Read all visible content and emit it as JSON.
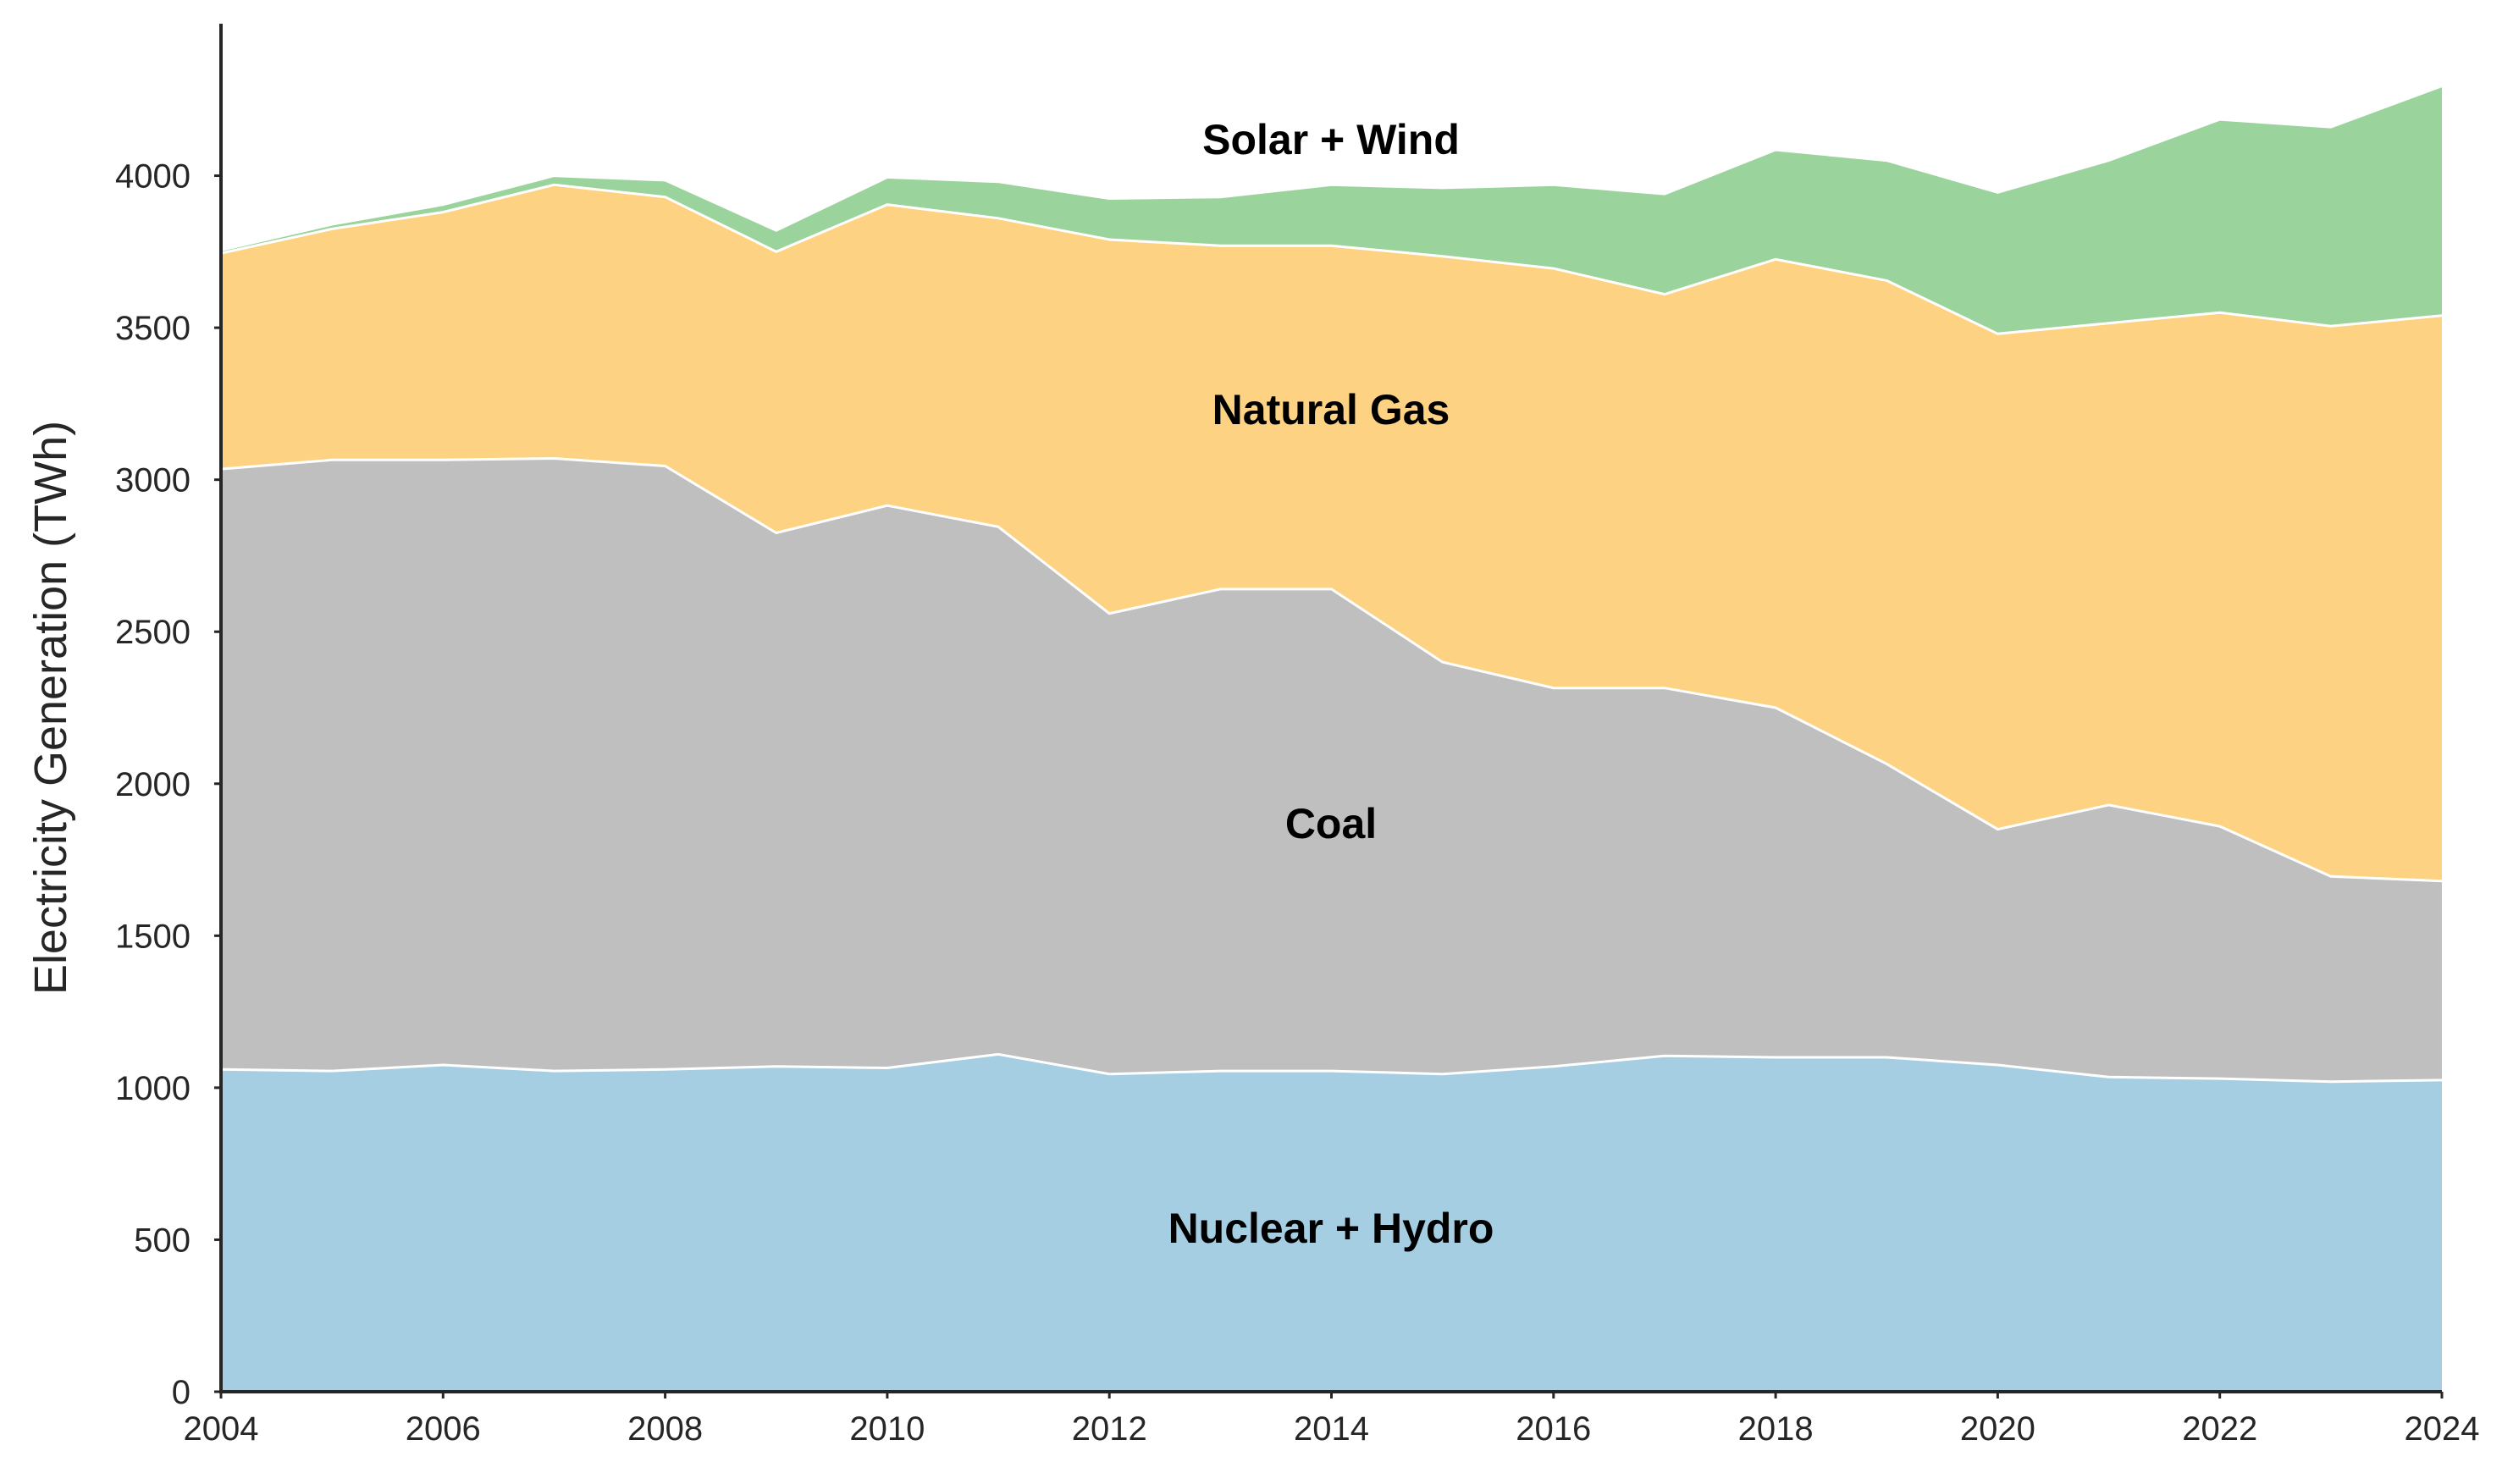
{
  "chart_data": {
    "type": "area",
    "stacked": true,
    "title": "",
    "xlabel": "",
    "ylabel": "Electricity Generation (TWh)",
    "xlim": [
      2004,
      2024
    ],
    "ylim": [
      0,
      4500
    ],
    "x": [
      2004,
      2005,
      2006,
      2007,
      2008,
      2009,
      2010,
      2011,
      2012,
      2013,
      2014,
      2015,
      2016,
      2017,
      2018,
      2019,
      2020,
      2021,
      2022,
      2023,
      2024
    ],
    "x_ticks": [
      2004,
      2006,
      2008,
      2010,
      2012,
      2014,
      2016,
      2018,
      2020,
      2022,
      2024
    ],
    "y_ticks": [
      0,
      500,
      1000,
      1500,
      2000,
      2500,
      3000,
      3500,
      4000
    ],
    "grid": false,
    "series": [
      {
        "name": "Nuclear + Hydro",
        "color": "#a6cee3",
        "values": [
          1060,
          1055,
          1075,
          1055,
          1060,
          1070,
          1065,
          1110,
          1045,
          1055,
          1055,
          1045,
          1070,
          1105,
          1100,
          1100,
          1075,
          1035,
          1030,
          1020,
          1025
        ]
      },
      {
        "name": "Coal",
        "color": "#bfbfbf",
        "values": [
          1975,
          2010,
          1990,
          2015,
          1985,
          1755,
          1850,
          1735,
          1515,
          1585,
          1585,
          1355,
          1245,
          1210,
          1150,
          965,
          775,
          895,
          830,
          675,
          655
        ]
      },
      {
        "name": "Natural Gas",
        "color": "#fdd383",
        "values": [
          710,
          760,
          815,
          900,
          885,
          925,
          990,
          1015,
          1230,
          1130,
          1130,
          1335,
          1380,
          1295,
          1475,
          1590,
          1630,
          1585,
          1690,
          1810,
          1860
        ]
      },
      {
        "name": "Solar + Wind",
        "color": "#9ad49c",
        "values": [
          10,
          15,
          25,
          30,
          55,
          70,
          90,
          120,
          135,
          160,
          200,
          225,
          275,
          330,
          360,
          395,
          465,
          535,
          635,
          655,
          755
        ]
      }
    ],
    "labels": {
      "nuclear": "Nuclear + Hydro",
      "coal": "Coal",
      "gas": "Natural Gas",
      "renewables": "Solar + Wind"
    }
  }
}
